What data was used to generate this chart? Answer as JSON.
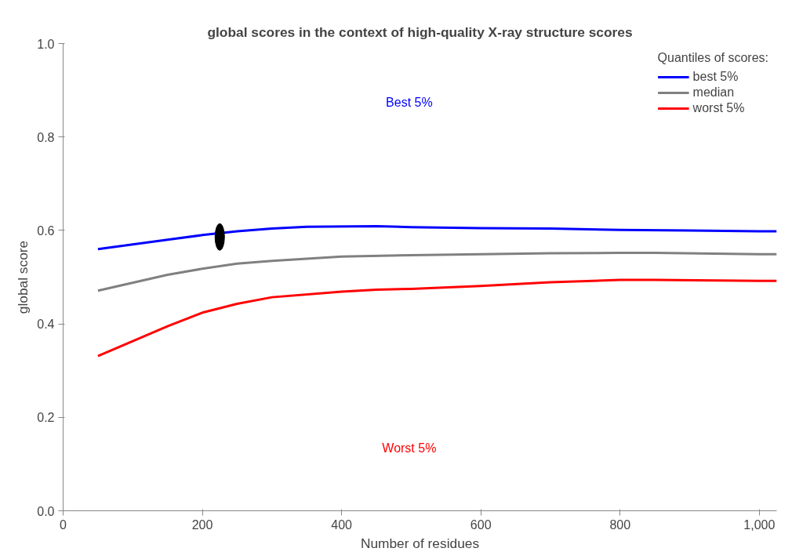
{
  "chart_data": {
    "type": "line",
    "title": "global scores in the context of high-quality X-ray structure scores",
    "xlabel": "Number of residues",
    "ylabel": "global score",
    "legend_title": "Quantiles of scores:",
    "xlim": [
      0,
      1025
    ],
    "ylim": [
      0,
      1.0
    ],
    "xticks": [
      0,
      200,
      400,
      600,
      800,
      {
        "value": 1000,
        "label": "1,000"
      }
    ],
    "yticks": [
      {
        "value": 0,
        "label": "0.0"
      },
      0.2,
      0.4,
      0.6,
      0.8,
      {
        "value": 1,
        "label": "1.0"
      }
    ],
    "grid": false,
    "legend": "top right",
    "line_style": "solid",
    "annotations": [
      "Best 5%",
      "Worst 5%"
    ],
    "series": [
      {
        "name": "best 5%",
        "color": "#0000ff",
        "x": [
          50,
          150,
          200,
          250,
          300,
          350,
          450,
          500,
          600,
          700,
          800,
          900,
          1000,
          1025
        ],
        "values": [
          0.56,
          0.58,
          0.59,
          0.598,
          0.604,
          0.608,
          0.609,
          0.607,
          0.605,
          0.604,
          0.601,
          0.6,
          0.598,
          0.598
        ]
      },
      {
        "name": "median",
        "color": "#808080",
        "x": [
          50,
          150,
          200,
          250,
          300,
          400,
          500,
          600,
          700,
          800,
          850,
          1000,
          1025
        ],
        "values": [
          0.471,
          0.505,
          0.518,
          0.529,
          0.535,
          0.544,
          0.547,
          0.549,
          0.551,
          0.552,
          0.552,
          0.549,
          0.549
        ]
      },
      {
        "name": "worst 5%",
        "color": "#ff0000",
        "x": [
          50,
          150,
          200,
          250,
          300,
          400,
          450,
          500,
          600,
          700,
          800,
          850,
          1000,
          1025
        ],
        "values": [
          0.331,
          0.395,
          0.424,
          0.443,
          0.457,
          0.469,
          0.473,
          0.475,
          0.481,
          0.489,
          0.494,
          0.494,
          0.492,
          0.492
        ]
      },
      {
        "type": "scatter",
        "marker": "circle",
        "color": "#000000",
        "x": [
          225
        ],
        "values": [
          0.586
        ]
      }
    ]
  }
}
